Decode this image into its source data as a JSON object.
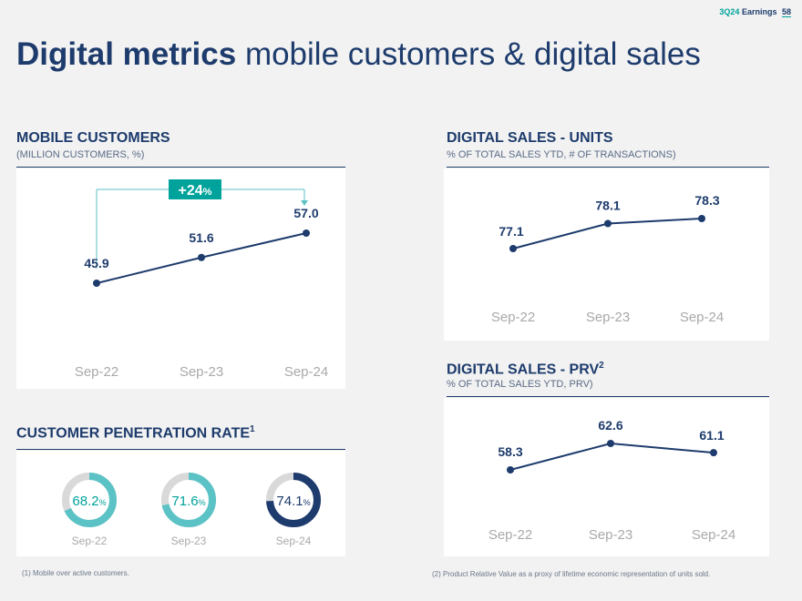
{
  "header": {
    "quarter": "3Q24",
    "label": "Earnings",
    "page_number": "58"
  },
  "title": {
    "bold": "Digital metrics",
    "light": "mobile customers & digital sales"
  },
  "mobile_customers": {
    "title": "MOBILE CUSTOMERS",
    "subtitle": "(MILLION CUSTOMERS, %)",
    "growth_label": "+24",
    "growth_unit": "%",
    "chart_data": {
      "type": "line",
      "categories": [
        "Sep-22",
        "Sep-23",
        "Sep-24"
      ],
      "values": [
        45.9,
        51.6,
        57.0
      ],
      "labels": [
        "45.9",
        "51.6",
        "57.0"
      ]
    }
  },
  "penetration": {
    "title": "CUSTOMER PENETRATION RATE",
    "footnote_ref": "1",
    "chart_data": {
      "type": "pie",
      "categories": [
        "Sep-22",
        "Sep-23",
        "Sep-24"
      ],
      "values": [
        68.2,
        71.6,
        74.1
      ],
      "labels": [
        "68.2",
        "71.6",
        "74.1"
      ],
      "unit": "%"
    }
  },
  "digital_units": {
    "title": "DIGITAL SALES - UNITS",
    "subtitle": "% OF TOTAL SALES YTD, # OF TRANSACTIONS)",
    "chart_data": {
      "type": "line",
      "categories": [
        "Sep-22",
        "Sep-23",
        "Sep-24"
      ],
      "values": [
        77.1,
        78.1,
        78.3
      ],
      "labels": [
        "77.1",
        "78.1",
        "78.3"
      ]
    }
  },
  "digital_prv": {
    "title": "DIGITAL SALES - PRV",
    "footnote_ref": "2",
    "subtitle": "% OF TOTAL SALES YTD, PRV)",
    "chart_data": {
      "type": "line",
      "categories": [
        "Sep-22",
        "Sep-23",
        "Sep-24"
      ],
      "values": [
        58.3,
        62.6,
        61.1
      ],
      "labels": [
        "58.3",
        "62.6",
        "61.1"
      ]
    }
  },
  "footnotes": {
    "note1": "(1) Mobile over active customers.",
    "note2": "(2) Product Relative Value as a proxy of lifetime economic representation of units sold."
  },
  "colors": {
    "navy": "#1d3b6c",
    "teal": "#00a39b",
    "light_teal": "#5bc2c6",
    "ring_bg": "#d9d9d9",
    "axis_gray": "#a9a9a9"
  }
}
